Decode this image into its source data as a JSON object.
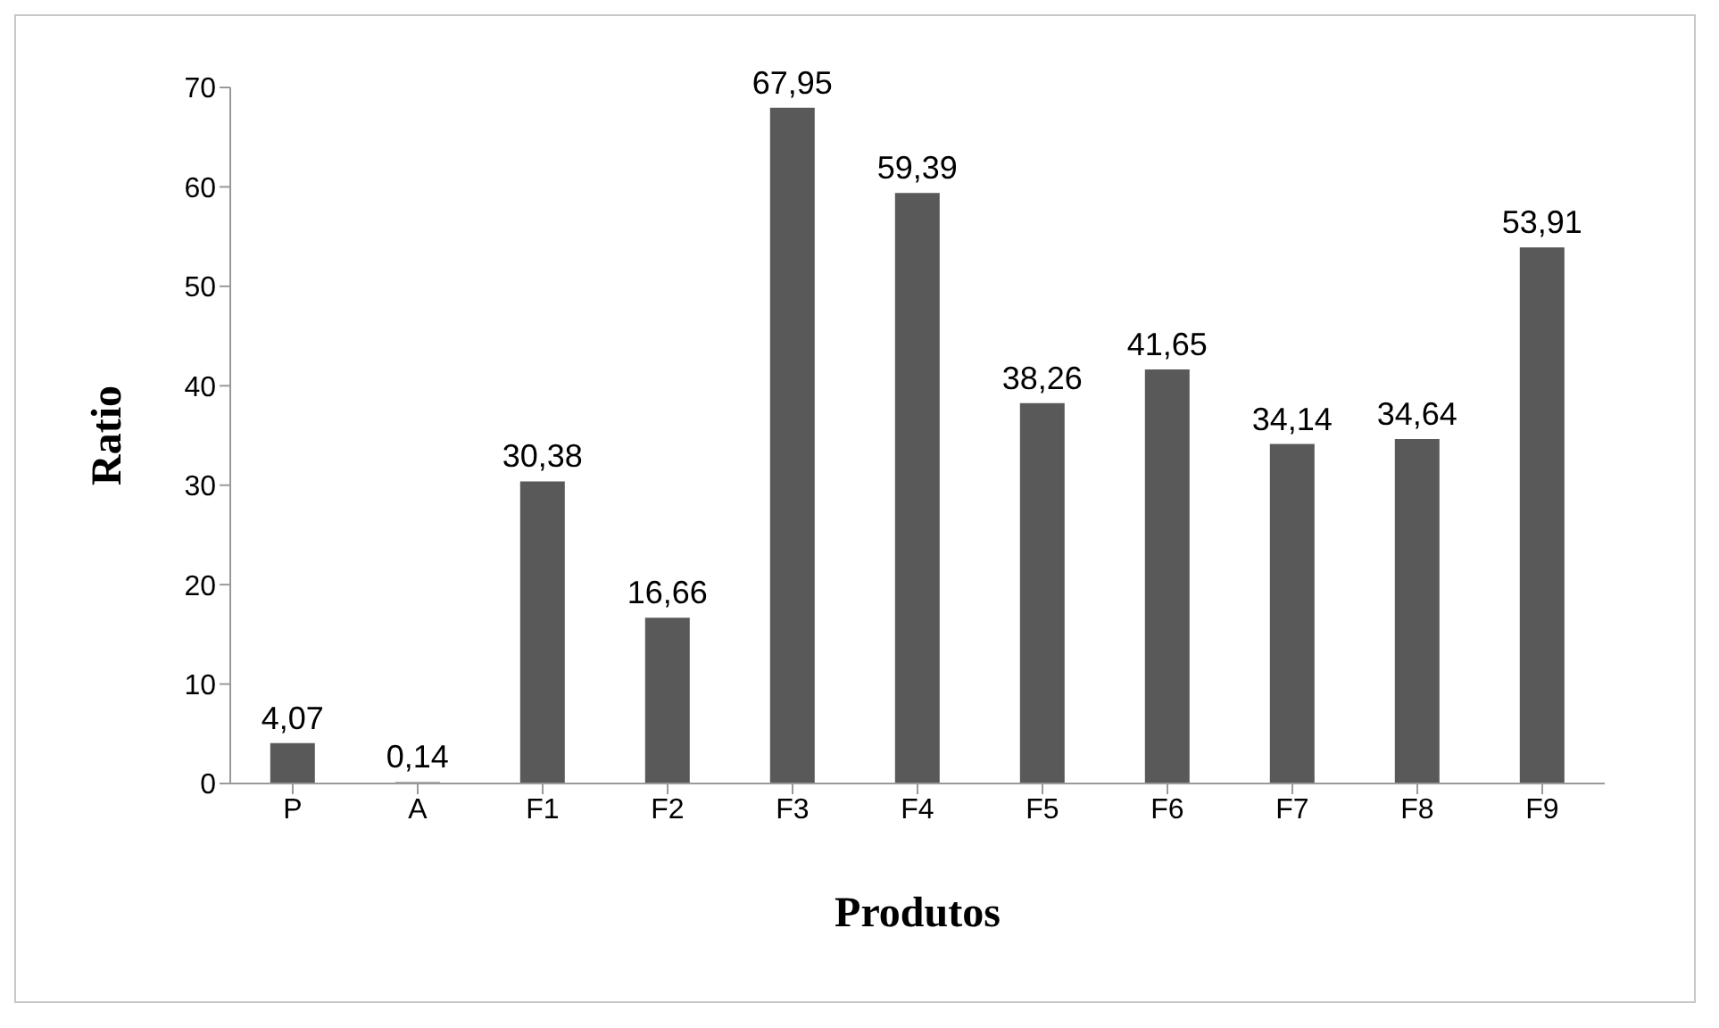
{
  "chart_data": {
    "type": "bar",
    "xlabel": "Produtos",
    "ylabel": "Ratio",
    "categories": [
      "P",
      "A",
      "F1",
      "F2",
      "F3",
      "F4",
      "F5",
      "F6",
      "F7",
      "F8",
      "F9"
    ],
    "values": [
      4.07,
      0.14,
      30.38,
      16.66,
      67.95,
      59.39,
      38.26,
      41.65,
      34.14,
      34.64,
      53.91
    ],
    "value_labels": [
      "4,07",
      "0,14",
      "30,38",
      "16,66",
      "67,95",
      "59,39",
      "38,26",
      "41,65",
      "34,14",
      "34,64",
      "53,91"
    ],
    "color": "#595959",
    "ylim": [
      0,
      70
    ],
    "yticks": [
      0,
      10,
      20,
      30,
      40,
      50,
      60,
      70
    ],
    "grid": false,
    "legend": false
  }
}
